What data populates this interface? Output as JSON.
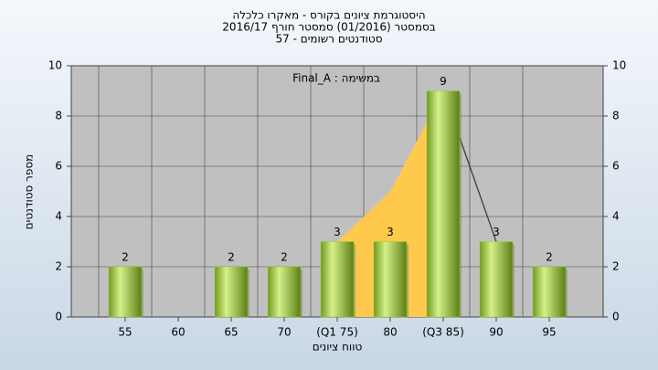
{
  "chart_data": {
    "type": "bar",
    "title": [
      "היסטוגרמת ציונים בקורס - מאקרו כלכלה",
      "בסמסטר (01/2016) סמסטר חורף 2016/17",
      "סטודנטים רשומים - 57"
    ],
    "annotation": "Final_A : במשימה",
    "x_label": "טווח ציונים",
    "y_label": "מספר סטודנטים",
    "categories": [
      "55",
      "60",
      "65",
      "70",
      "(Q1 75)",
      "80",
      "(Q3 85)",
      "90",
      "95"
    ],
    "values": [
      2,
      null,
      2,
      2,
      3,
      3,
      9,
      3,
      2
    ],
    "color": "#9acd32",
    "area": {
      "color": "#ffc94d",
      "values": [
        null,
        null,
        null,
        null,
        3,
        5,
        9,
        null,
        null
      ]
    },
    "line": {
      "color": "#333333",
      "values": [
        null,
        null,
        null,
        null,
        null,
        null,
        9,
        3,
        null
      ]
    },
    "ylim": [
      0,
      10
    ],
    "yticks": [
      0,
      2,
      4,
      6,
      8,
      10
    ],
    "y2lim": [
      0,
      10
    ],
    "y2ticks": [
      0,
      2,
      4,
      6,
      8,
      10
    ],
    "grid": true
  }
}
